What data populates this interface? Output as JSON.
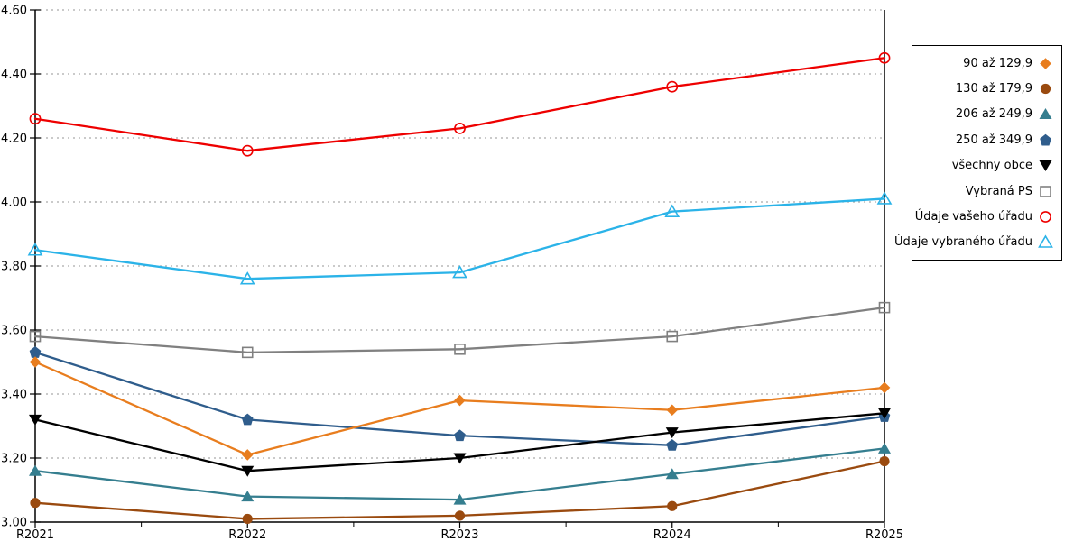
{
  "page": {
    "background": "#ffffff"
  },
  "colors": {
    "grid": "#ababab",
    "axis": "#000000",
    "legend_border": "#000000"
  },
  "chart_data": {
    "type": "line",
    "title": "",
    "xlabel": "",
    "ylabel": "",
    "x_categories": [
      "R2021",
      "R2022",
      "R2023",
      "R2024",
      "R2025"
    ],
    "y_ticks": [
      "3.00",
      "3.20",
      "3.40",
      "3.60",
      "3.80",
      "4.00",
      "4.20",
      "4.40",
      "4.60"
    ],
    "ylim": [
      3.0,
      4.6
    ],
    "grid": "horizontal dotted gridlines at each 0.20 step",
    "legend_position": "right, boxed, markers right of right-aligned labels",
    "series": [
      {
        "name": "90 až 129,9",
        "marker": "diamond",
        "style": "filled",
        "color": "#E87D1E",
        "values": [
          3.5,
          3.21,
          3.38,
          3.35,
          3.42
        ]
      },
      {
        "name": "130 až 179,9",
        "marker": "circle",
        "style": "filled",
        "color": "#9A4A0F",
        "values": [
          3.06,
          3.01,
          3.02,
          3.05,
          3.19
        ]
      },
      {
        "name": "206 až 249,9",
        "marker": "triangle-up",
        "style": "filled",
        "color": "#357E8F",
        "values": [
          3.16,
          3.08,
          3.07,
          3.15,
          3.23
        ]
      },
      {
        "name": "250 až 349,9",
        "marker": "pentagon",
        "style": "filled",
        "color": "#2F5D8C",
        "values": [
          3.53,
          3.32,
          3.27,
          3.24,
          3.33
        ]
      },
      {
        "name": "všechny obce",
        "marker": "triangle-down",
        "style": "filled",
        "color": "#000000",
        "values": [
          3.32,
          3.16,
          3.2,
          3.28,
          3.34
        ]
      },
      {
        "name": "Vybraná PS",
        "marker": "square",
        "style": "open",
        "color": "#808080",
        "values": [
          3.58,
          3.53,
          3.54,
          3.58,
          3.67
        ]
      },
      {
        "name": "Údaje vašeho úřadu",
        "marker": "circle",
        "style": "open",
        "color": "#EE0000",
        "values": [
          4.26,
          4.16,
          4.23,
          4.36,
          4.45
        ]
      },
      {
        "name": "Údaje vybraného úřadu",
        "marker": "triangle-up",
        "style": "open",
        "color": "#2BB3E8",
        "values": [
          3.85,
          3.76,
          3.78,
          3.97,
          4.01
        ]
      }
    ]
  }
}
